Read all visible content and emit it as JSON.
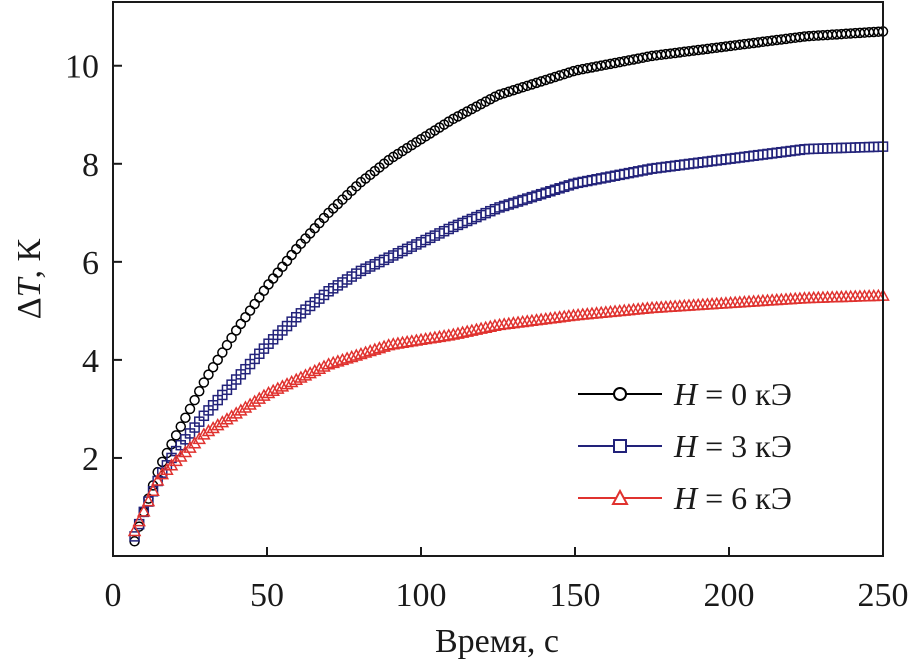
{
  "chart_data": {
    "type": "scatter",
    "xlabel": "Время, с",
    "ylabel": "ΔT, К",
    "ylabel_parts": {
      "delta": "Δ",
      "symbol": "T",
      "unit": ", К"
    },
    "xlim": [
      0,
      250
    ],
    "ylim": [
      0,
      11.3
    ],
    "x_ticks": [
      "0",
      "50",
      "100",
      "150",
      "200",
      "250"
    ],
    "y_ticks": [
      "2",
      "4",
      "6",
      "8",
      "10"
    ],
    "grid": false,
    "legend_position": "bottom-right",
    "series": [
      {
        "name": "H = 0 кЭ",
        "name_parts": {
          "var": "H",
          "rest": " = 0 кЭ"
        },
        "marker": "circle",
        "color": "#000000",
        "x": [
          7,
          10,
          15,
          20,
          30,
          40,
          50,
          60,
          70,
          80,
          90,
          100,
          110,
          125,
          150,
          175,
          200,
          225,
          250
        ],
        "y": [
          0.3,
          0.9,
          1.8,
          2.4,
          3.6,
          4.6,
          5.5,
          6.3,
          7.0,
          7.6,
          8.1,
          8.5,
          8.9,
          9.4,
          9.9,
          10.2,
          10.4,
          10.6,
          10.7
        ]
      },
      {
        "name": "H = 3 кЭ",
        "name_parts": {
          "var": "H",
          "rest": " = 3 кЭ"
        },
        "marker": "square",
        "color": "#22227a",
        "x": [
          7,
          10,
          15,
          20,
          30,
          40,
          50,
          60,
          70,
          80,
          90,
          100,
          110,
          125,
          150,
          175,
          200,
          225,
          250
        ],
        "y": [
          0.4,
          0.9,
          1.6,
          2.1,
          2.9,
          3.6,
          4.3,
          4.9,
          5.4,
          5.8,
          6.1,
          6.4,
          6.7,
          7.1,
          7.6,
          7.9,
          8.1,
          8.3,
          8.35
        ]
      },
      {
        "name": "H = 6 кЭ",
        "name_parts": {
          "var": "H",
          "rest": " = 6 кЭ"
        },
        "marker": "triangle",
        "color": "#e0322f",
        "x": [
          7,
          10,
          15,
          20,
          30,
          40,
          50,
          60,
          70,
          80,
          90,
          100,
          110,
          125,
          150,
          175,
          200,
          225,
          250
        ],
        "y": [
          0.5,
          0.9,
          1.6,
          1.9,
          2.5,
          2.9,
          3.3,
          3.6,
          3.9,
          4.1,
          4.3,
          4.4,
          4.5,
          4.7,
          4.9,
          5.05,
          5.15,
          5.25,
          5.3
        ]
      }
    ]
  }
}
